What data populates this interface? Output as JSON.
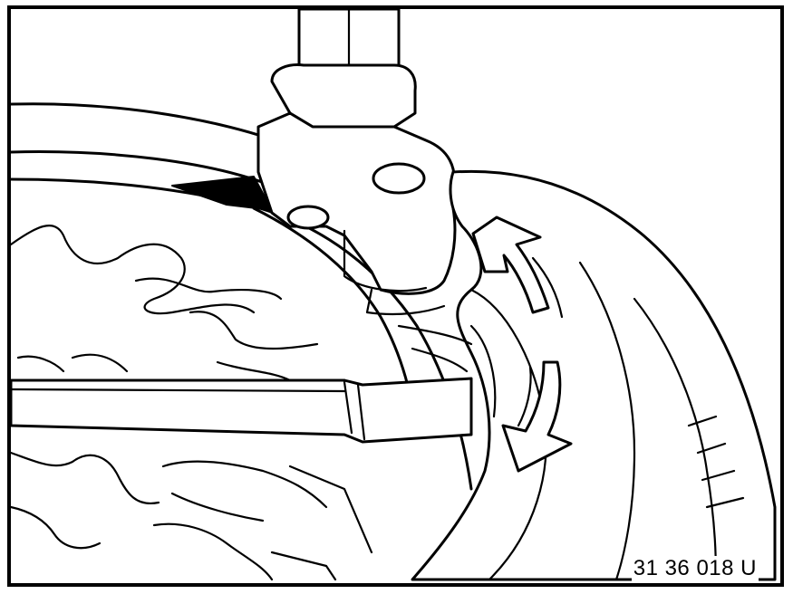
{
  "figure": {
    "reference_code": "31 36 018 U"
  }
}
